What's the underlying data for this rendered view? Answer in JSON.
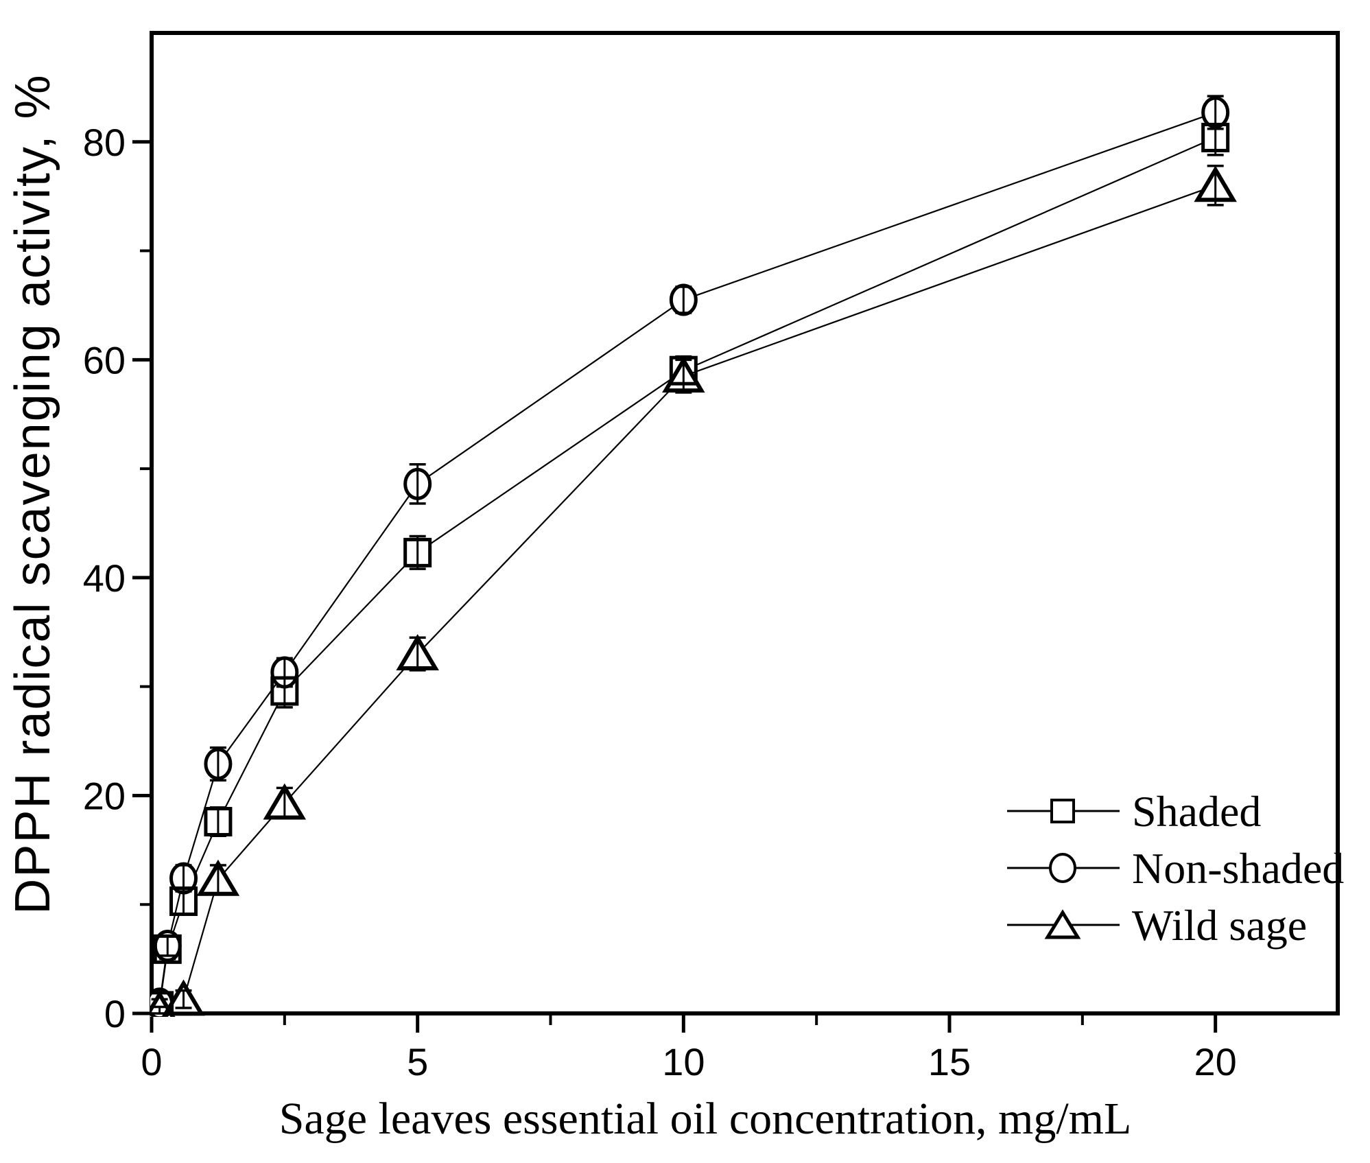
{
  "figure": {
    "background": "#ffffff",
    "ink": "#000000"
  },
  "chart_data": {
    "type": "line",
    "title": "",
    "xlabel": "Sage leaves essential oil concentration, mg/mL",
    "ylabel": "DPPH radical scavenging activity, %",
    "xlim": [
      0,
      22.3
    ],
    "ylim": [
      0,
      90
    ],
    "x_major_ticks": [
      0,
      5,
      10,
      15,
      20
    ],
    "x_tick_labels": [
      "0",
      "5",
      "10",
      "15",
      "20"
    ],
    "x_minor_ticks": [
      2.5,
      7.5,
      12.5,
      17.5
    ],
    "y_major_ticks": [
      0,
      20,
      40,
      60,
      80
    ],
    "y_tick_labels": [
      "0",
      "20",
      "40",
      "60",
      "80"
    ],
    "y_minor_ticks": [
      10,
      30,
      50,
      70
    ],
    "grid": false,
    "legend_position": "inside lower right",
    "marker_fill": "open",
    "error_bars": true,
    "series": [
      {
        "name": "Shaded",
        "marker": "square",
        "x": [
          0.15,
          0.3,
          0.6,
          1.25,
          2.5,
          5,
          10,
          20
        ],
        "y": [
          0.7,
          5.9,
          10.3,
          17.6,
          29.6,
          42.3,
          59.0,
          80.4
        ],
        "err": [
          0.4,
          0.9,
          1.2,
          1.3,
          1.5,
          1.5,
          1.3,
          1.6
        ]
      },
      {
        "name": "Non-shaded",
        "marker": "circle",
        "x": [
          0.15,
          0.3,
          0.6,
          1.25,
          2.5,
          5,
          10,
          20
        ],
        "y": [
          0.9,
          6.2,
          12.4,
          22.9,
          31.3,
          48.6,
          65.5,
          82.7
        ],
        "err": [
          0.4,
          0.9,
          1.2,
          1.5,
          1.3,
          1.8,
          1.2,
          1.5
        ]
      },
      {
        "name": "Wild sage",
        "marker": "triangle",
        "x": [
          0.15,
          0.6,
          1.25,
          2.5,
          5,
          10,
          20
        ],
        "y": [
          0.3,
          1.3,
          12.3,
          19.3,
          33.0,
          58.5,
          76.0
        ],
        "err": [
          0.3,
          0.8,
          1.3,
          1.4,
          1.5,
          1.5,
          1.8
        ]
      }
    ]
  }
}
